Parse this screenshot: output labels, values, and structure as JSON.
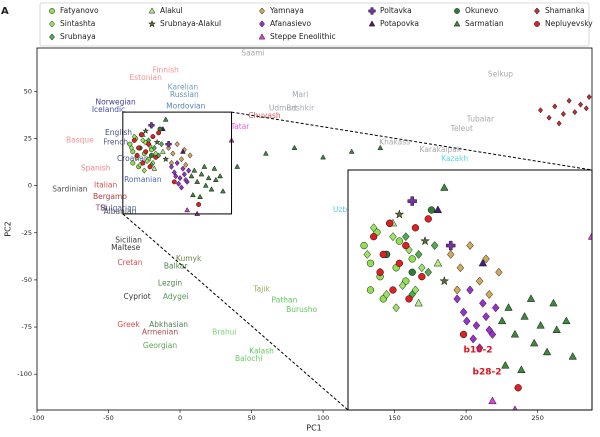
{
  "panel_label": "A",
  "chart_data": {
    "type": "scatter",
    "x_label": "PC1",
    "y_label": "PC2",
    "xlim": [
      -100,
      288
    ],
    "ylim": [
      -119,
      73
    ],
    "xticks": [
      -100,
      -50,
      0,
      50,
      100,
      150,
      200,
      250
    ],
    "yticks": [
      50,
      25,
      0,
      -25,
      -50,
      -75,
      -100
    ],
    "grid": false,
    "legend": "top",
    "series": [
      {
        "name": "Fatyanovo",
        "color": "#90e050",
        "marker": "circle",
        "x": [
          -35,
          -33,
          -31,
          -30,
          -28,
          -27,
          -25,
          -24,
          -22,
          -20,
          -33,
          -29
        ],
        "values": [
          22,
          18,
          25,
          15,
          20,
          27,
          17,
          23,
          14,
          19,
          12,
          10
        ]
      },
      {
        "name": "Sintashta",
        "color": "#9be564",
        "marker": "diamond",
        "x": [
          -34,
          -30,
          -26,
          -23,
          -21,
          -19,
          -28,
          -32,
          -17,
          -25
        ],
        "values": [
          20,
          16,
          24,
          13,
          21,
          12,
          11,
          26,
          17,
          8
        ]
      },
      {
        "name": "Srubnaya",
        "color": "#4cae4c",
        "marker": "diamond",
        "x": [
          -22,
          -18,
          -15,
          -20,
          -13
        ],
        "values": [
          24,
          20,
          16,
          11,
          22
        ]
      },
      {
        "name": "Alakul",
        "color": "#b0f080",
        "marker": "triangle",
        "x": [
          -26,
          -18,
          -12
        ],
        "values": [
          27,
          9,
          18
        ]
      },
      {
        "name": "Srubnaya-Alakul",
        "color": "#556b2f",
        "marker": "star",
        "x": [
          -24,
          -16,
          -10
        ],
        "values": [
          29,
          23,
          14
        ]
      },
      {
        "name": "Yamnaya",
        "color": "#d4a85a",
        "marker": "diamond",
        "x": [
          -8,
          -5,
          -2,
          1,
          3,
          -6,
          4,
          7
        ],
        "values": [
          20,
          17,
          22,
          14,
          19,
          12,
          11,
          16
        ]
      },
      {
        "name": "Afanasievo",
        "color": "#9b30d0",
        "marker": "diamond",
        "x": [
          -6,
          -4,
          -2,
          0,
          2,
          3,
          5,
          -1,
          1,
          4,
          6,
          -3
        ],
        "values": [
          10,
          7,
          12,
          4,
          9,
          6,
          2,
          1,
          -1,
          3,
          8,
          5
        ]
      },
      {
        "name": "Steppe Eneolithic",
        "color": "#e040e0",
        "marker": "triangle",
        "x": [
          5,
          12,
          36
        ],
        "values": [
          -13,
          -15,
          24
        ]
      },
      {
        "name": "Poltavka",
        "color": "#7a2fa8",
        "marker": "plus",
        "x": [
          -20,
          -8
        ],
        "values": [
          32,
          22
        ]
      },
      {
        "name": "Potapovka",
        "color": "#4b1f7a",
        "marker": "triangle",
        "x": [
          -12,
          2
        ],
        "values": [
          30,
          18
        ]
      },
      {
        "name": "Okunevo",
        "color": "#2e7d32",
        "marker": "circle",
        "x": [
          -14,
          -28,
          -20
        ],
        "values": [
          30,
          20,
          16
        ]
      },
      {
        "name": "Sarmatian",
        "color": "#3a8a3a",
        "marker": "triangle",
        "x": [
          8,
          10,
          12,
          15,
          18,
          20,
          22,
          25,
          28,
          30,
          14,
          17,
          24,
          9,
          40,
          60,
          80,
          100,
          120,
          140,
          -10
        ],
        "values": [
          5,
          8,
          2,
          6,
          0,
          4,
          -2,
          3,
          5,
          -3,
          -6,
          10,
          9,
          -5,
          10,
          17,
          20,
          15,
          18,
          20,
          35
        ]
      },
      {
        "name": "Shamanka",
        "color": "#c0302a",
        "marker": "diamond",
        "x": [
          252,
          258,
          262,
          268,
          272,
          276,
          280,
          284,
          286,
          265
        ],
        "values": [
          40,
          36,
          42,
          38,
          45,
          39,
          43,
          41,
          47,
          33
        ]
      },
      {
        "name": "Nepluyevsky",
        "color": "#e02020",
        "marker": "circle",
        "x": [
          -32,
          -29,
          -27,
          -24,
          -22,
          -19,
          -17,
          -26,
          -30,
          -21,
          -4,
          13,
          -15
        ],
        "values": [
          24,
          20,
          27,
          18,
          22,
          26,
          15,
          12,
          16,
          10,
          2,
          -10,
          28
        ]
      }
    ],
    "population_labels": [
      {
        "text": "Saami",
        "x": 51,
        "y": 70,
        "color": "#999999"
      },
      {
        "text": "Estonian",
        "x": -24,
        "y": 57,
        "color": "#f08080"
      },
      {
        "text": "Finnish",
        "x": -10,
        "y": 61,
        "color": "#f08080"
      },
      {
        "text": "Karelian",
        "x": 2,
        "y": 52,
        "color": "#5a8fb8"
      },
      {
        "text": "Russian",
        "x": 3,
        "y": 48,
        "color": "#4a7fa8"
      },
      {
        "text": "Mordovian",
        "x": 4,
        "y": 42,
        "color": "#3a70a8"
      },
      {
        "text": "Mari",
        "x": 84,
        "y": 48,
        "color": "#8a9aaa"
      },
      {
        "text": "Udmurt",
        "x": 72,
        "y": 41,
        "color": "#8a9aaa"
      },
      {
        "text": "Bashkir",
        "x": 84,
        "y": 41,
        "color": "#9aa0aa"
      },
      {
        "text": "Chuvash",
        "x": 59,
        "y": 37,
        "color": "#d04040"
      },
      {
        "text": "Tatar",
        "x": 42,
        "y": 31,
        "color": "#e040e0"
      },
      {
        "text": "Selkup",
        "x": 224,
        "y": 59,
        "color": "#999999"
      },
      {
        "text": "Tubalar",
        "x": 210,
        "y": 35,
        "color": "#999999"
      },
      {
        "text": "Teleut",
        "x": 197,
        "y": 30,
        "color": "#999999"
      },
      {
        "text": "Khakass",
        "x": 150,
        "y": 23,
        "color": "#999999"
      },
      {
        "text": "Karakalpak",
        "x": 182,
        "y": 19,
        "color": "#999999"
      },
      {
        "text": "Kazakh",
        "x": 192,
        "y": 14,
        "color": "#40d0e0"
      },
      {
        "text": "Uzbek",
        "x": 115,
        "y": -13,
        "color": "#40c8e0"
      },
      {
        "text": "Norwegian",
        "x": -45,
        "y": 44,
        "color": "#202080"
      },
      {
        "text": "Icelandic",
        "x": -50,
        "y": 40,
        "color": "#203090"
      },
      {
        "text": "English",
        "x": -43,
        "y": 28,
        "color": "#203070"
      },
      {
        "text": "French",
        "x": -45,
        "y": 23,
        "color": "#304080"
      },
      {
        "text": "Basque",
        "x": -70,
        "y": 24,
        "color": "#f08080"
      },
      {
        "text": "Croatian",
        "x": -33,
        "y": 14,
        "color": "#203080"
      },
      {
        "text": "Romanian",
        "x": -26,
        "y": 3,
        "color": "#3050a0"
      },
      {
        "text": "Spanish",
        "x": -59,
        "y": 9,
        "color": "#f07070"
      },
      {
        "text": "Italian",
        "x": -52,
        "y": 0,
        "color": "#d03030"
      },
      {
        "text": "Sardinian",
        "x": -77,
        "y": -2,
        "color": "#333333"
      },
      {
        "text": "Bergamo",
        "x": -49,
        "y": -6,
        "color": "#a02020"
      },
      {
        "text": "TSI",
        "x": -55,
        "y": -12,
        "color": "#902020"
      },
      {
        "text": "Bulgarian",
        "x": -43,
        "y": -12,
        "color": "#3050a0"
      },
      {
        "text": "Albanian",
        "x": -42,
        "y": -14,
        "color": "#333333"
      },
      {
        "text": "Sicilian",
        "x": -36,
        "y": -29,
        "color": "#111111"
      },
      {
        "text": "Maltese",
        "x": -38,
        "y": -33,
        "color": "#111111"
      },
      {
        "text": "Cretan",
        "x": -35,
        "y": -41,
        "color": "#d03030"
      },
      {
        "text": "Kumyk",
        "x": 6,
        "y": -39,
        "color": "#556b2f"
      },
      {
        "text": "Balkar",
        "x": -3,
        "y": -43,
        "color": "#2e6b2e"
      },
      {
        "text": "Lezgin",
        "x": -7,
        "y": -52,
        "color": "#2e6b2e"
      },
      {
        "text": "Adygei",
        "x": -3,
        "y": -59,
        "color": "#3a8a3a"
      },
      {
        "text": "Tajik",
        "x": 57,
        "y": -55,
        "color": "#8a9a3a"
      },
      {
        "text": "Pathan",
        "x": 73,
        "y": -61,
        "color": "#40c040"
      },
      {
        "text": "Burusho",
        "x": 85,
        "y": -66,
        "color": "#40c040"
      },
      {
        "text": "Cypriot",
        "x": -30,
        "y": -59,
        "color": "#111111"
      },
      {
        "text": "Greek",
        "x": -36,
        "y": -74,
        "color": "#d03030"
      },
      {
        "text": "Abkhasian",
        "x": -8,
        "y": -74,
        "color": "#2e6b2e"
      },
      {
        "text": "Armenian",
        "x": -14,
        "y": -78,
        "color": "#a03030"
      },
      {
        "text": "Georgian",
        "x": -14,
        "y": -85,
        "color": "#3a9a3a"
      },
      {
        "text": "Brahui",
        "x": 31,
        "y": -78,
        "color": "#60d060"
      },
      {
        "text": "Kalash",
        "x": 57,
        "y": -88,
        "color": "#40c040"
      },
      {
        "text": "Balochi",
        "x": 48,
        "y": -92,
        "color": "#50c050"
      }
    ],
    "inset": {
      "xlim": [
        -40,
        36
      ],
      "ylim": [
        -15,
        39
      ]
    },
    "annotation_color": "#e0101a",
    "annotations": [
      {
        "text": "b10-2",
        "x": 0.5,
        "y": -1.5
      },
      {
        "text": "b28-2",
        "x": 3.3,
        "y": -6.5
      }
    ]
  }
}
